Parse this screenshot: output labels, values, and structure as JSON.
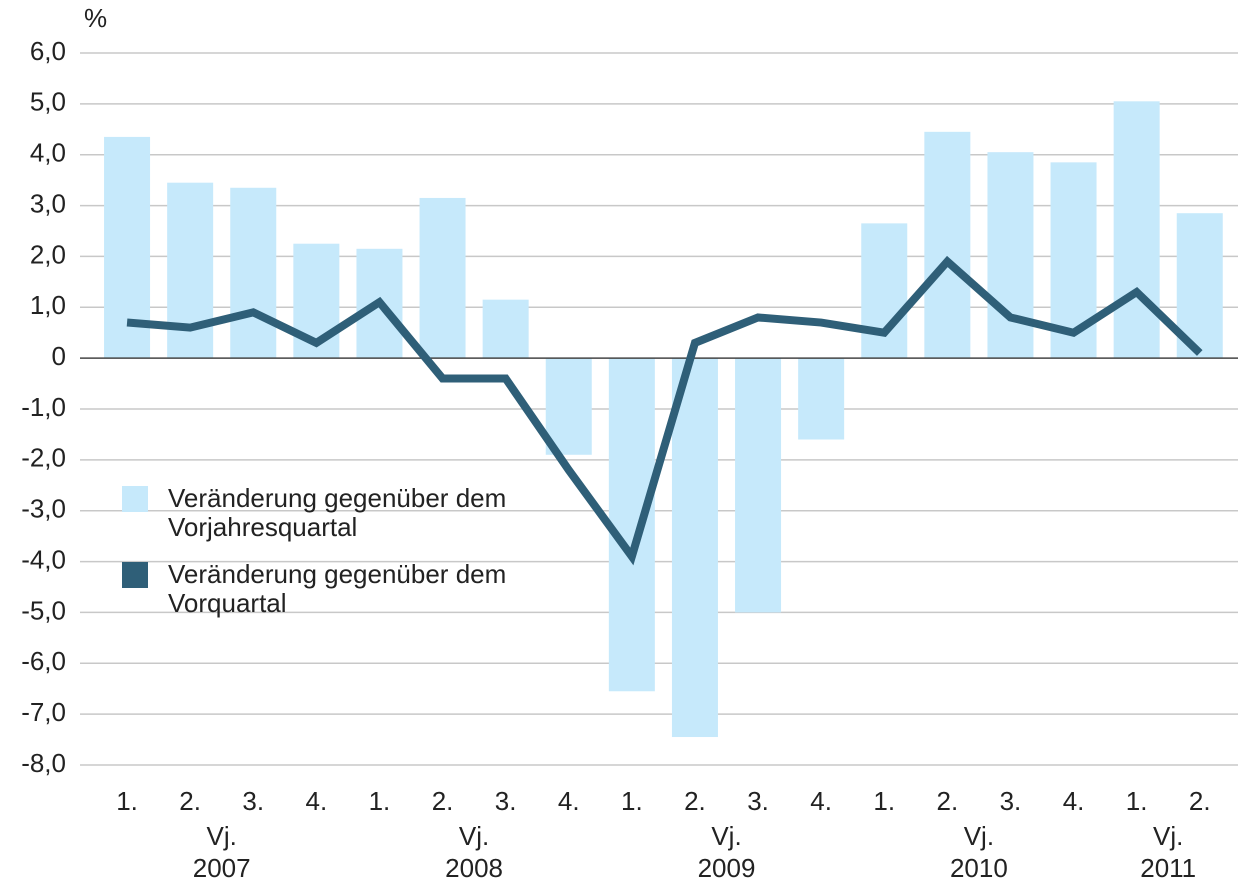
{
  "chart_data": {
    "type": "bar_line",
    "unit": "%",
    "categories": [
      "1.",
      "2.",
      "3.",
      "4.",
      "1.",
      "2.",
      "3.",
      "4.",
      "1.",
      "2.",
      "3.",
      "4.",
      "1.",
      "2.",
      "3.",
      "4.",
      "1.",
      "2."
    ],
    "groups": [
      {
        "prefix": "Vj.",
        "year": "2007"
      },
      {
        "prefix": "Vj.",
        "year": "2008"
      },
      {
        "prefix": "Vj.",
        "year": "2009"
      },
      {
        "prefix": "Vj.",
        "year": "2010"
      },
      {
        "prefix": "Vj.",
        "year": "2011"
      }
    ],
    "series": [
      {
        "name": "Veränderung gegenüber dem Vorjahresquartal",
        "type": "bar",
        "color": "#c6e9fb",
        "values": [
          4.35,
          3.45,
          3.35,
          2.25,
          2.15,
          3.15,
          1.15,
          -1.9,
          -6.55,
          -7.45,
          -5.0,
          -1.6,
          2.65,
          4.45,
          4.05,
          3.85,
          5.05,
          2.85
        ]
      },
      {
        "name": "Veränderung gegenüber dem Vorquartal",
        "type": "line",
        "color": "#2f5f78",
        "values": [
          0.7,
          0.6,
          0.9,
          0.3,
          1.1,
          -0.4,
          -0.4,
          -2.2,
          -3.9,
          0.3,
          0.8,
          0.7,
          0.5,
          1.9,
          0.8,
          0.5,
          1.3,
          0.1
        ]
      }
    ],
    "ylim": [
      -8,
      6
    ],
    "yticks": [
      {
        "value": -8,
        "label": "-8,0"
      },
      {
        "value": -7,
        "label": "-7,0"
      },
      {
        "value": -6,
        "label": "-6,0"
      },
      {
        "value": -5,
        "label": "-5,0"
      },
      {
        "value": -4,
        "label": "-4,0"
      },
      {
        "value": -3,
        "label": "-3,0"
      },
      {
        "value": -2,
        "label": "-2,0"
      },
      {
        "value": -1,
        "label": "-1,0"
      },
      0,
      {
        "value": 1,
        "label": "1,0"
      },
      {
        "value": 2,
        "label": "2,0"
      },
      {
        "value": 3,
        "label": "3,0"
      },
      {
        "value": 4,
        "label": "4,0"
      },
      {
        "value": 5,
        "label": "5,0"
      },
      {
        "value": 6,
        "label": "6,0"
      }
    ],
    "grid": true
  }
}
